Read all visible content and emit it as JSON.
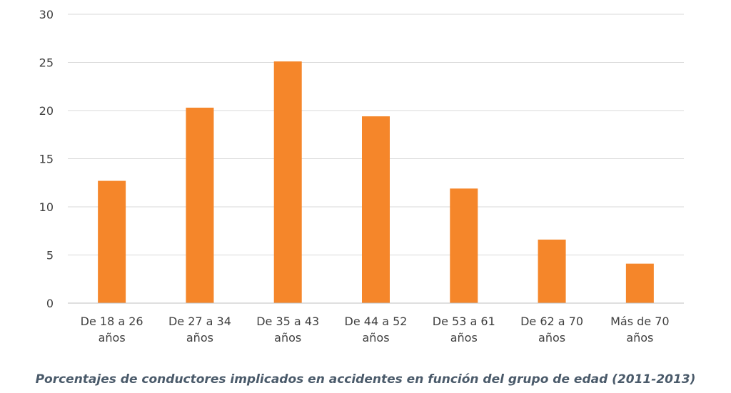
{
  "chart_data": {
    "type": "bar",
    "title": "",
    "xlabel": "",
    "ylabel": "",
    "categories": [
      [
        "De 18 a 26",
        "años"
      ],
      [
        "De 27 a 34",
        "años"
      ],
      [
        "De 35 a 43",
        "años"
      ],
      [
        "De 44 a 52",
        "años"
      ],
      [
        "De 53 a 61",
        "años"
      ],
      [
        "De 62 a 70",
        "años"
      ],
      [
        "Más de 70",
        "años"
      ]
    ],
    "values": [
      12.7,
      20.3,
      25.1,
      19.4,
      11.9,
      6.6,
      4.1
    ],
    "ylim": [
      0,
      30
    ],
    "yticks": [
      0,
      5,
      10,
      15,
      20,
      25,
      30
    ],
    "grid": true,
    "legend": "none",
    "bar_color": "#f5862a",
    "grid_color": "#d9d9d9",
    "axis_color": "#bfbfbf"
  },
  "caption": "Porcentajes de conductores implicados en accidentes en función del grupo de edad (2011-2013)"
}
